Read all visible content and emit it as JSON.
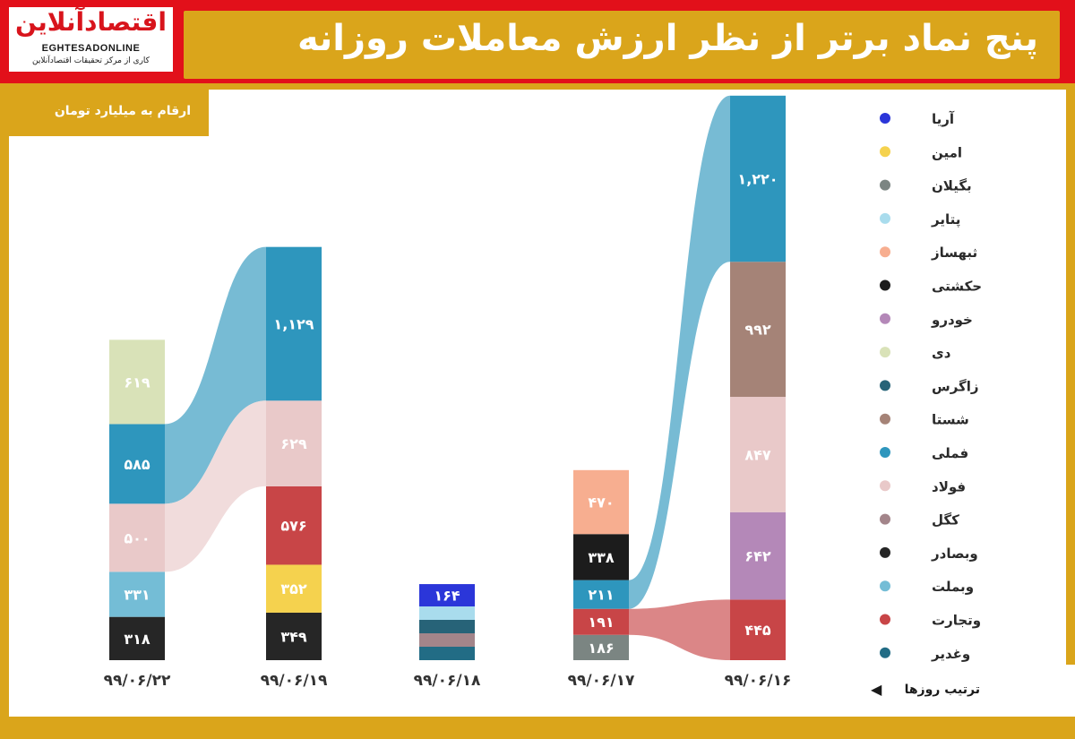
{
  "header": {
    "title": "پنج نماد برتر از نظر ارزش معاملات روزانه",
    "logo_fa": "اقتصادآنلاین",
    "logo_en": "EGHTESADONLINE",
    "logo_sub": "کاری از مرکز تحقیقات اقتصادآنلاین"
  },
  "unit_label": "ارقام به میلیارد تومان",
  "order_label": "ترتیب روزها",
  "colors": {
    "frame": "#e2101a",
    "gold": "#daa51b",
    "text": "#ffffff"
  },
  "chart_data": {
    "type": "bar",
    "subtype": "stacked-ribbon",
    "unit": "میلیارد تومان",
    "legend_position": "right",
    "legend": [
      {
        "name": "آریا",
        "color": "#2b36d9"
      },
      {
        "name": "امین",
        "color": "#f5d24e"
      },
      {
        "name": "بگیلان",
        "color": "#7b8582"
      },
      {
        "name": "پتایر",
        "color": "#a9dced"
      },
      {
        "name": "ثبهساز",
        "color": "#f7ae90"
      },
      {
        "name": "حکشتی",
        "color": "#1c1c1c"
      },
      {
        "name": "خودرو",
        "color": "#b488b8"
      },
      {
        "name": "دی",
        "color": "#d9e2b8"
      },
      {
        "name": "زاگرس",
        "color": "#276378"
      },
      {
        "name": "شستا",
        "color": "#a58377"
      },
      {
        "name": "فملی",
        "color": "#2e96bd"
      },
      {
        "name": "فولاد",
        "color": "#e9c9c9"
      },
      {
        "name": "کگل",
        "color": "#a3858a"
      },
      {
        "name": "وبصادر",
        "color": "#262626"
      },
      {
        "name": "وبملت",
        "color": "#74bdd6"
      },
      {
        "name": "وتجارت",
        "color": "#c84547"
      },
      {
        "name": "وغدیر",
        "color": "#226c85"
      }
    ],
    "days": [
      {
        "date": "۹۹/۰۶/۲۲",
        "stack": [
          {
            "symbol": "وبصادر",
            "value": 318,
            "label": "۳۱۸"
          },
          {
            "symbol": "وبملت",
            "value": 331,
            "label": "۳۳۱"
          },
          {
            "symbol": "فولاد",
            "value": 500,
            "label": "۵۰۰"
          },
          {
            "symbol": "فملی",
            "value": 585,
            "label": "۵۸۵"
          },
          {
            "symbol": "دی",
            "value": 619,
            "label": "۶۱۹"
          }
        ]
      },
      {
        "date": "۹۹/۰۶/۱۹",
        "stack": [
          {
            "symbol": "وبصادر",
            "value": 349,
            "label": "۳۴۹"
          },
          {
            "symbol": "امین",
            "value": 352,
            "label": "۳۵۲"
          },
          {
            "symbol": "وتجارت",
            "value": 576,
            "label": "۵۷۶"
          },
          {
            "symbol": "فولاد",
            "value": 629,
            "label": "۶۲۹"
          },
          {
            "symbol": "فملی",
            "value": 1129,
            "label": "۱,۱۲۹"
          }
        ]
      },
      {
        "date": "۹۹/۰۶/۱۸",
        "stack": [
          {
            "symbol": "وغدیر",
            "value": 45,
            "label": ""
          },
          {
            "symbol": "کگل",
            "value": 45,
            "label": ""
          },
          {
            "symbol": "زاگرس",
            "value": 45,
            "label": ""
          },
          {
            "symbol": "پتایر",
            "value": 100,
            "label": ""
          },
          {
            "symbol": "آریا",
            "value": 164,
            "label": "۱۶۴"
          }
        ]
      },
      {
        "date": "۹۹/۰۶/۱۷",
        "stack": [
          {
            "symbol": "بگیلان",
            "value": 186,
            "label": "۱۸۶"
          },
          {
            "symbol": "وتجارت",
            "value": 191,
            "label": "۱۹۱"
          },
          {
            "symbol": "فملی",
            "value": 211,
            "label": "۲۱۱"
          },
          {
            "symbol": "حکشتی",
            "value": 338,
            "label": "۳۳۸"
          },
          {
            "symbol": "ثبهساز",
            "value": 470,
            "label": "۴۷۰"
          }
        ]
      },
      {
        "date": "۹۹/۰۶/۱۶",
        "stack": [
          {
            "symbol": "وتجارت",
            "value": 445,
            "label": "۴۴۵"
          },
          {
            "symbol": "خودرو",
            "value": 642,
            "label": "۶۴۲"
          },
          {
            "symbol": "فولاد",
            "value": 847,
            "label": "۸۴۷"
          },
          {
            "symbol": "شستا",
            "value": 992,
            "label": "۹۹۲"
          },
          {
            "symbol": "فملی",
            "value": 1220,
            "label": "۱,۲۲۰"
          }
        ]
      }
    ],
    "flows": [
      {
        "symbol": "فملی",
        "from": "۹۹/۰۶/۱۷",
        "to": "۹۹/۰۶/۱۶"
      },
      {
        "symbol": "وتجارت",
        "from": "۹۹/۰۶/۱۷",
        "to": "۹۹/۰۶/۱۶"
      },
      {
        "symbol": "فملی",
        "from": "۹۹/۰۶/۲۲",
        "to": "۹۹/۰۶/۱۹"
      },
      {
        "symbol": "فولاد",
        "from": "۹۹/۰۶/۲۲",
        "to": "۹۹/۰۶/۱۹"
      }
    ]
  }
}
